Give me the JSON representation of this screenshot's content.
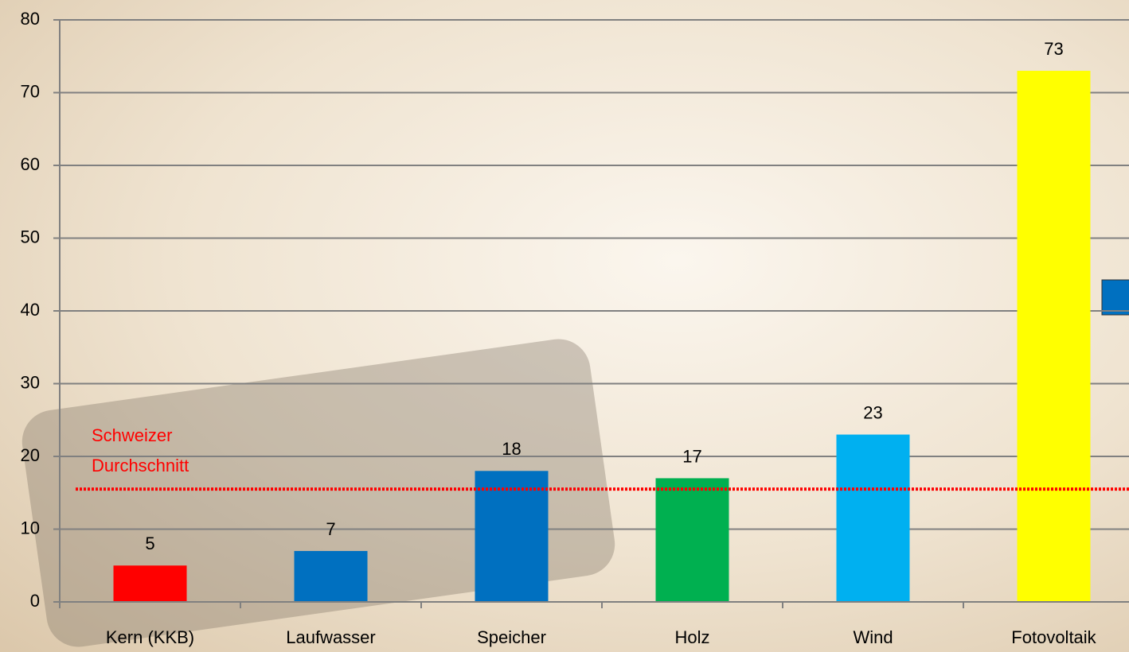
{
  "chart_data": {
    "type": "bar",
    "categories": [
      "Kern (KKB)",
      "Laufwasser",
      "Speicher",
      "Holz",
      "Wind",
      "Fotovoltaik"
    ],
    "values": [
      5,
      7,
      18,
      17,
      23,
      73
    ],
    "colors": [
      "#ff0000",
      "#0070c0",
      "#0070c0",
      "#00b050",
      "#00b0f0",
      "#ffff00"
    ],
    "ylim": [
      0,
      80
    ],
    "yticks": [
      0,
      10,
      20,
      30,
      40,
      50,
      60,
      70,
      80
    ],
    "grid": true,
    "reference_line": {
      "value": 15.5,
      "label_lines": [
        "Schweizer",
        "Durchschnitt"
      ],
      "color": "#ff0000"
    }
  }
}
